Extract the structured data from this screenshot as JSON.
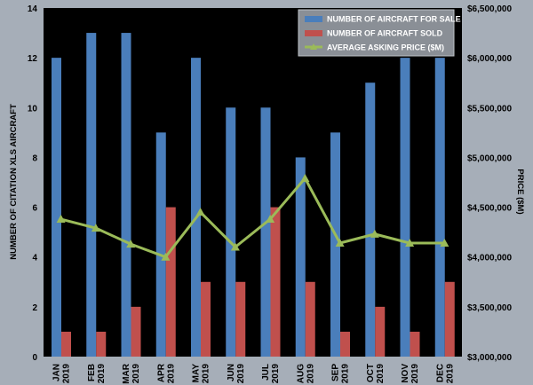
{
  "chart_data": {
    "type": "bar",
    "categories": [
      [
        "JAN",
        "2019"
      ],
      [
        "FEB",
        "2019"
      ],
      [
        "MAR",
        "2019"
      ],
      [
        "APR",
        "2019"
      ],
      [
        "MAY",
        "2019"
      ],
      [
        "JUN",
        "2019"
      ],
      [
        "JUL",
        "2019"
      ],
      [
        "AUG",
        "2019"
      ],
      [
        "SEP",
        "2019"
      ],
      [
        "OCT",
        "2019"
      ],
      [
        "NOV",
        "2019"
      ],
      [
        "DEC",
        "2019"
      ]
    ],
    "series": [
      {
        "name": "NUMBER OF AIRCRAFT FOR SALE",
        "type": "bar",
        "axis": "left",
        "color": "#4a7ebb",
        "values": [
          12,
          13,
          13,
          9,
          12,
          10,
          10,
          8,
          9,
          11,
          12,
          12
        ]
      },
      {
        "name": "NUMBER OF AIRCRAFT SOLD",
        "type": "bar",
        "axis": "left",
        "color": "#c0504d",
        "values": [
          1,
          1,
          2,
          6,
          3,
          3,
          6,
          3,
          1,
          2,
          1,
          3
        ]
      },
      {
        "name": "AVERAGE ASKING PRICE ($M)",
        "type": "line",
        "axis": "right",
        "color": "#9bbb59",
        "values": [
          4380000,
          4290000,
          4130000,
          4000000,
          4450000,
          4100000,
          4380000,
          4790000,
          4140000,
          4230000,
          4140000,
          4140000
        ]
      }
    ],
    "ylabel": "NUMBER OF CITATION XLS AIRCRAFT",
    "y2label": "PRICE ($M)",
    "ylim": [
      0,
      14
    ],
    "y_ticks": [
      "0",
      "2",
      "4",
      "6",
      "8",
      "10",
      "12",
      "14"
    ],
    "y2lim": [
      3000000,
      6500000
    ],
    "y2_ticks": [
      "$3,000,000",
      "$3,500,000",
      "$4,000,000",
      "$4,500,000",
      "$5,000,000",
      "$5,500,000",
      "$6,000,000",
      "$6,500,000"
    ],
    "grid": false,
    "legend_position": "top-right",
    "plot_background": "#000000",
    "page_background": "#a6aeb8"
  }
}
